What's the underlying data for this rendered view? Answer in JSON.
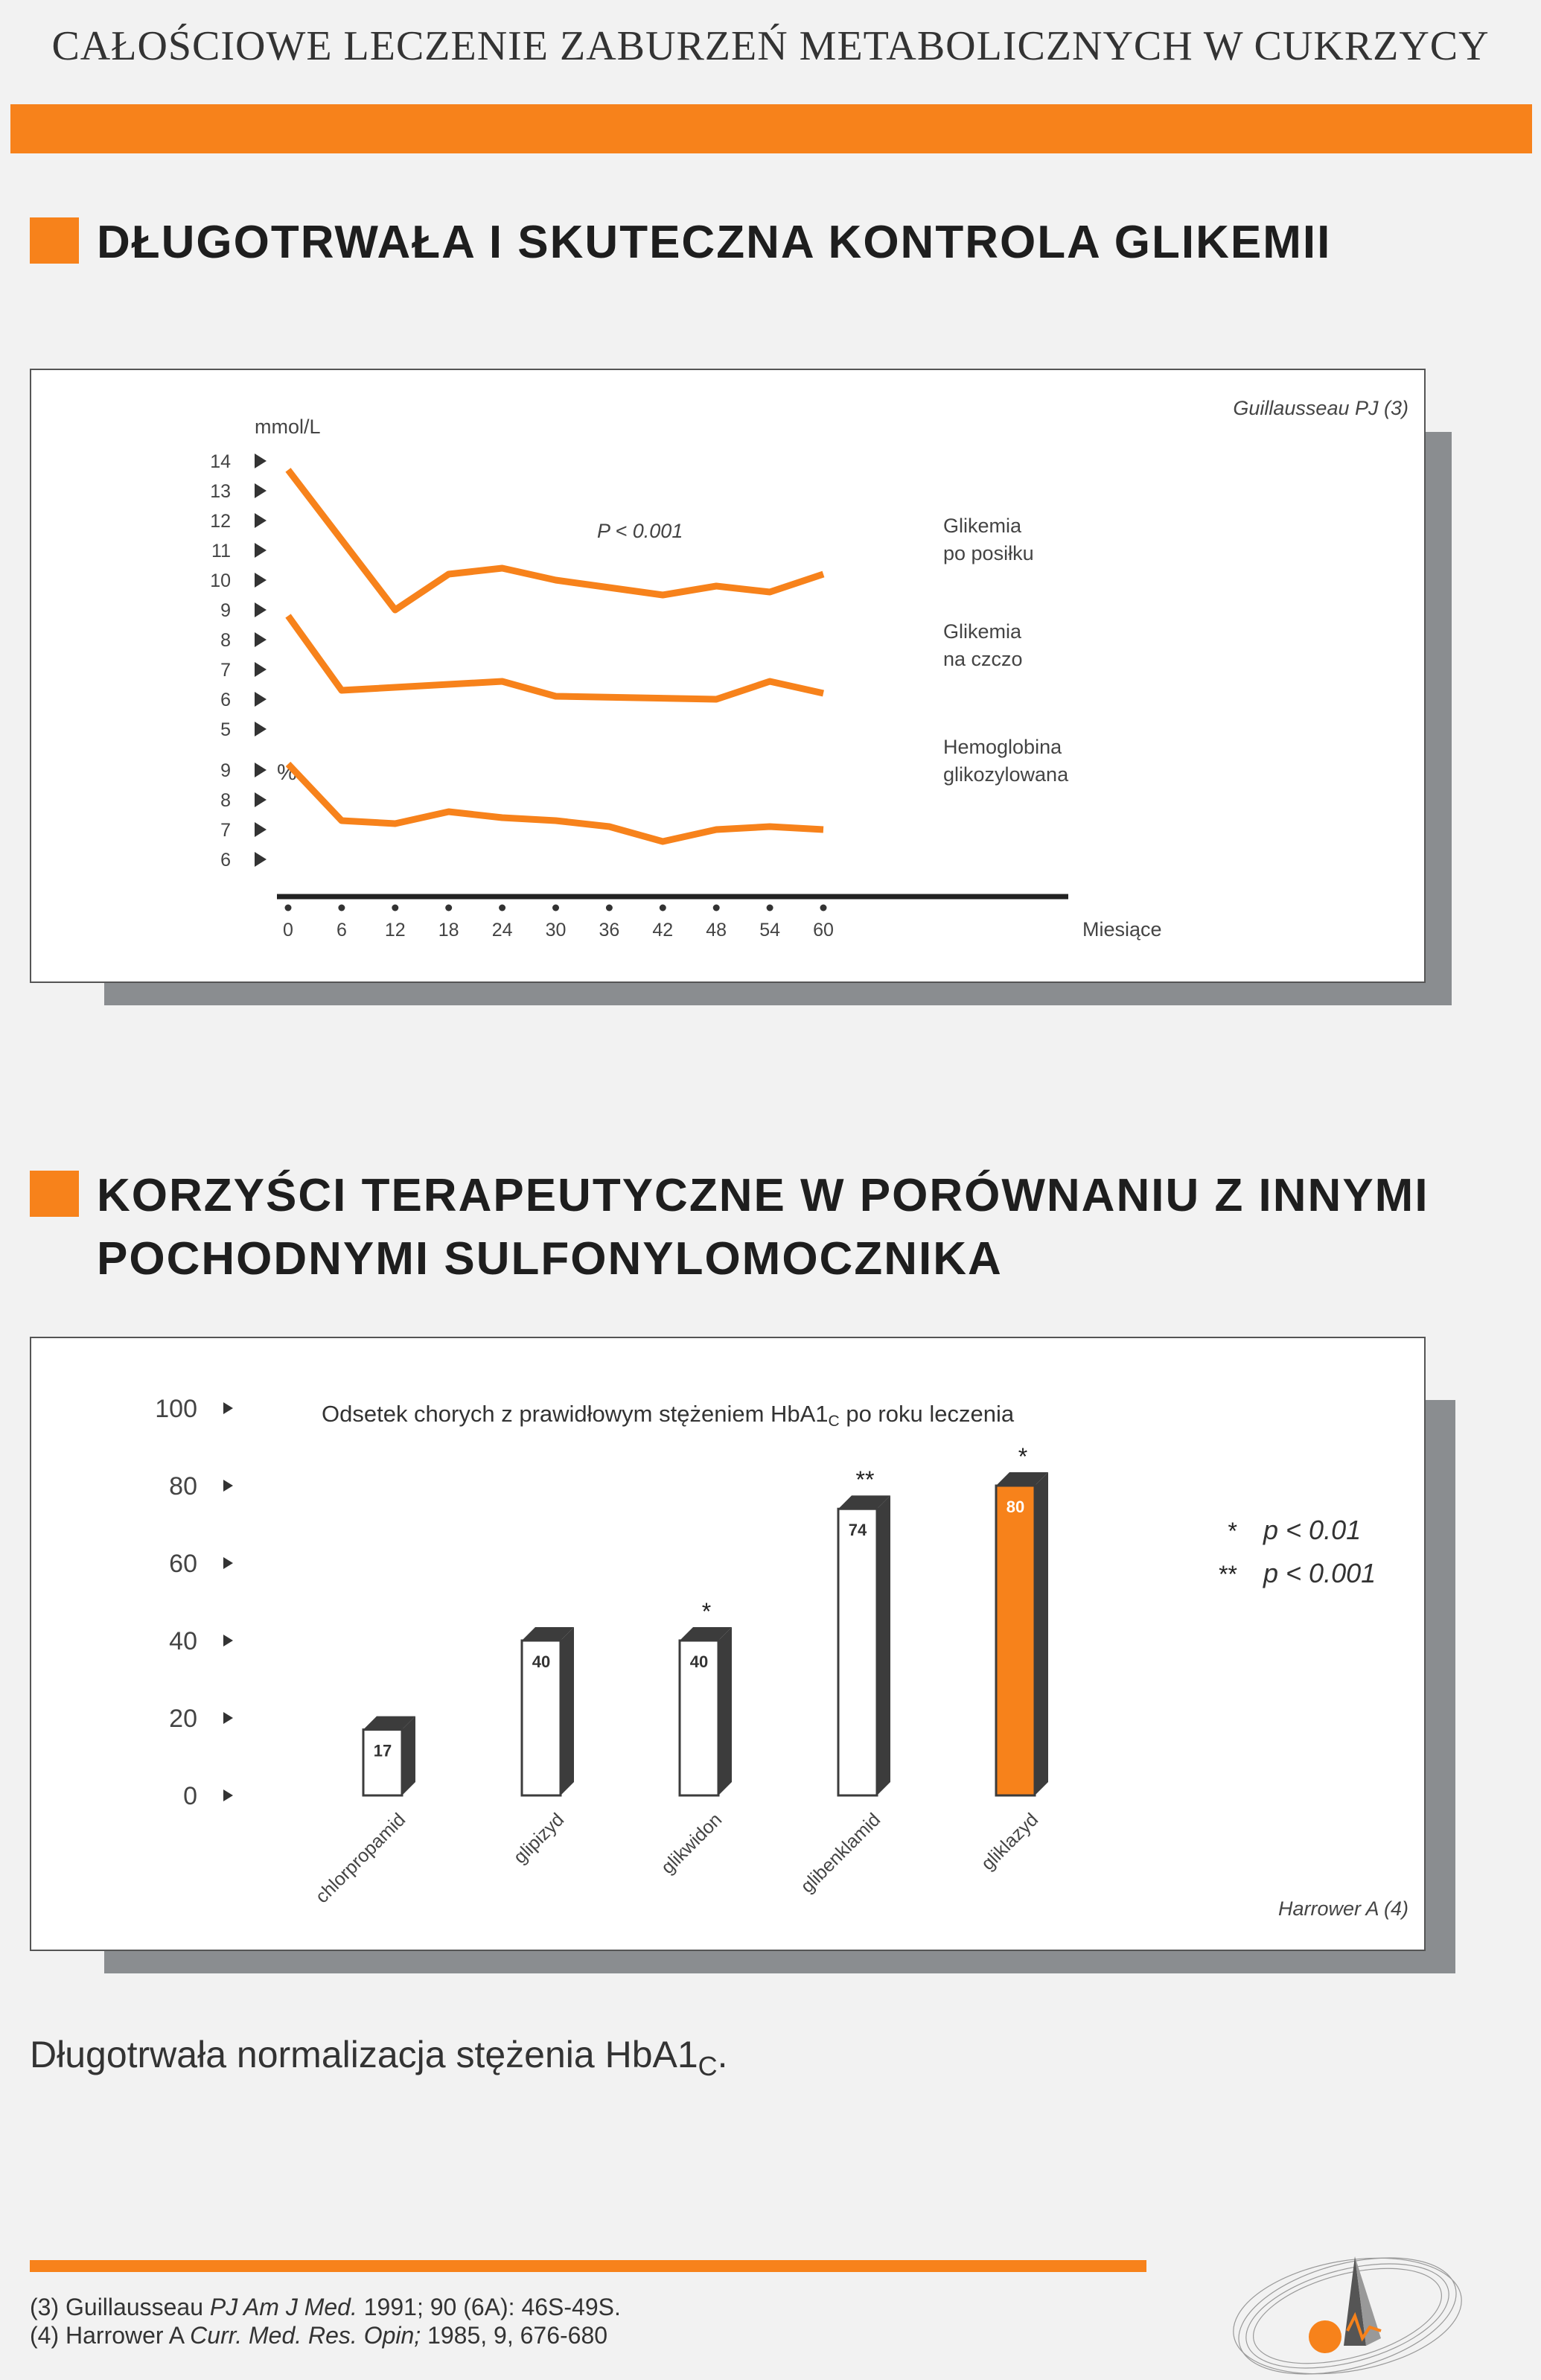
{
  "header": "CAŁOŚCIOWE LECZENIE ZABURZEŃ METABOLICZNYCH W CUKRZYCY",
  "section1_title": "DŁUGOTRWAŁA I SKUTECZNA KONTROLA GLIKEMII",
  "section2_title_line1": "KORZYŚCI TERAPEUTYCZNE W PORÓWNANIU Z INNYMI",
  "section2_title_line2": "POCHODNYMI SULFONYLOMOCZNIKA",
  "caption": "Długotrwała normalizacja stężenia HbA1C.",
  "references": [
    {
      "pre": "(3) Guillausseau ",
      "journal": "PJ Am J Med.",
      "post": " 1991; 90 (6A): 46S-49S."
    },
    {
      "pre": "(4) Harrower A ",
      "journal": "Curr. Med. Res. Opin;",
      "post": " 1985, 9, 676-680"
    }
  ],
  "colors": {
    "accent": "#f7821b",
    "dark_bar": "#3c3c3c",
    "shadow": "#8a8d90"
  },
  "chart_data": [
    {
      "type": "line",
      "source": "Guillausseau PJ (3)",
      "annotation": "P < 0.001",
      "unit_top": "mmol/L",
      "unit_bottom": "%",
      "xlabel": "Miesiące",
      "x_ticks": [
        0,
        6,
        12,
        18,
        24,
        30,
        36,
        42,
        48,
        54,
        60
      ],
      "y_ticks_mmol": [
        14,
        13,
        12,
        11,
        10,
        9,
        8,
        7,
        6,
        5
      ],
      "y_ticks_pct": [
        9,
        8,
        7,
        6
      ],
      "series": [
        {
          "name_line1": "Glikemia",
          "name_line2": "po posiłku",
          "unit": "mmol/L",
          "x": [
            0,
            12,
            18,
            24,
            30,
            42,
            48,
            54,
            60
          ],
          "y": [
            13.7,
            9.0,
            10.2,
            10.4,
            10.0,
            9.5,
            9.8,
            9.6,
            10.2
          ]
        },
        {
          "name_line1": "Glikemia",
          "name_line2": "na czczo",
          "unit": "mmol/L",
          "x": [
            0,
            6,
            24,
            30,
            48,
            54,
            60
          ],
          "y": [
            8.8,
            6.3,
            6.6,
            6.1,
            6.0,
            6.6,
            6.2
          ]
        },
        {
          "name_line1": "Hemoglobina",
          "name_line2": "glikozylowana",
          "unit": "%",
          "x": [
            0,
            6,
            12,
            18,
            24,
            30,
            36,
            42,
            48,
            54,
            60
          ],
          "y": [
            9.2,
            7.3,
            7.2,
            7.6,
            7.4,
            7.3,
            7.1,
            6.6,
            7.0,
            7.1,
            7.0
          ]
        }
      ]
    },
    {
      "type": "bar",
      "title": "Odsetek chorych z prawidłowym stężeniem HbA1C po roku leczenia",
      "source": "Harrower A (4)",
      "y_ticks": [
        100,
        80,
        60,
        40,
        20,
        0
      ],
      "ylim": [
        0,
        100
      ],
      "categories": [
        "chlorpropamid",
        "glipizyd",
        "glikwidon",
        "glibenklamid",
        "gliklazyd"
      ],
      "values": [
        17,
        40,
        40,
        74,
        80
      ],
      "significance": [
        "",
        "",
        "*",
        "**",
        "*"
      ],
      "highlight": "gliklazyd",
      "legend": [
        {
          "marker": "*",
          "text": "p < 0.01"
        },
        {
          "marker": "**",
          "text": "p < 0.001"
        }
      ]
    }
  ]
}
